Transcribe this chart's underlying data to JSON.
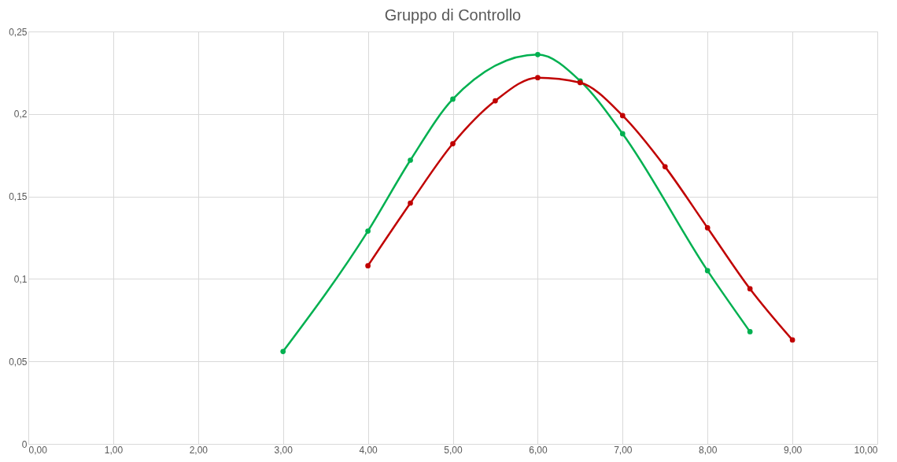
{
  "chart_data": {
    "type": "line",
    "title": "Gruppo di Controllo",
    "series": [
      {
        "color": "#00b050",
        "x": [
          3,
          4,
          4.5,
          5,
          6,
          6.5,
          7,
          8,
          8.5
        ],
        "values": [
          0.056,
          0.129,
          0.172,
          0.209,
          0.236,
          0.22,
          0.188,
          0.105,
          0.068
        ]
      },
      {
        "color": "#c00000",
        "x": [
          4,
          4.5,
          5,
          5.5,
          6,
          6.5,
          7,
          7.5,
          8,
          8.5,
          9
        ],
        "values": [
          0.108,
          0.146,
          0.182,
          0.208,
          0.222,
          0.219,
          0.199,
          0.168,
          0.131,
          0.094,
          0.063
        ]
      }
    ],
    "xlim": [
      0,
      10
    ],
    "xticks": [
      {
        "value": 0,
        "label": "0,00"
      },
      {
        "value": 1,
        "label": "1,00"
      },
      {
        "value": 2,
        "label": "2,00"
      },
      {
        "value": 3,
        "label": "3,00"
      },
      {
        "value": 4,
        "label": "4,00"
      },
      {
        "value": 5,
        "label": "5,00"
      },
      {
        "value": 6,
        "label": "6,00"
      },
      {
        "value": 7,
        "label": "7,00"
      },
      {
        "value": 8,
        "label": "8,00"
      },
      {
        "value": 9,
        "label": "9,00"
      },
      {
        "value": 10,
        "label": "10,00"
      }
    ],
    "ylim": [
      0,
      0.25
    ],
    "yticks": [
      0,
      {
        "value": 0.05,
        "label": "0,05"
      },
      {
        "value": 0.1,
        "label": "0,1"
      },
      {
        "value": 0.15,
        "label": "0,15"
      },
      {
        "value": 0.2,
        "label": "0,2"
      },
      {
        "value": 0.25,
        "label": "0,25"
      }
    ],
    "grid": true,
    "marker": "circle",
    "line_style": "solid"
  }
}
